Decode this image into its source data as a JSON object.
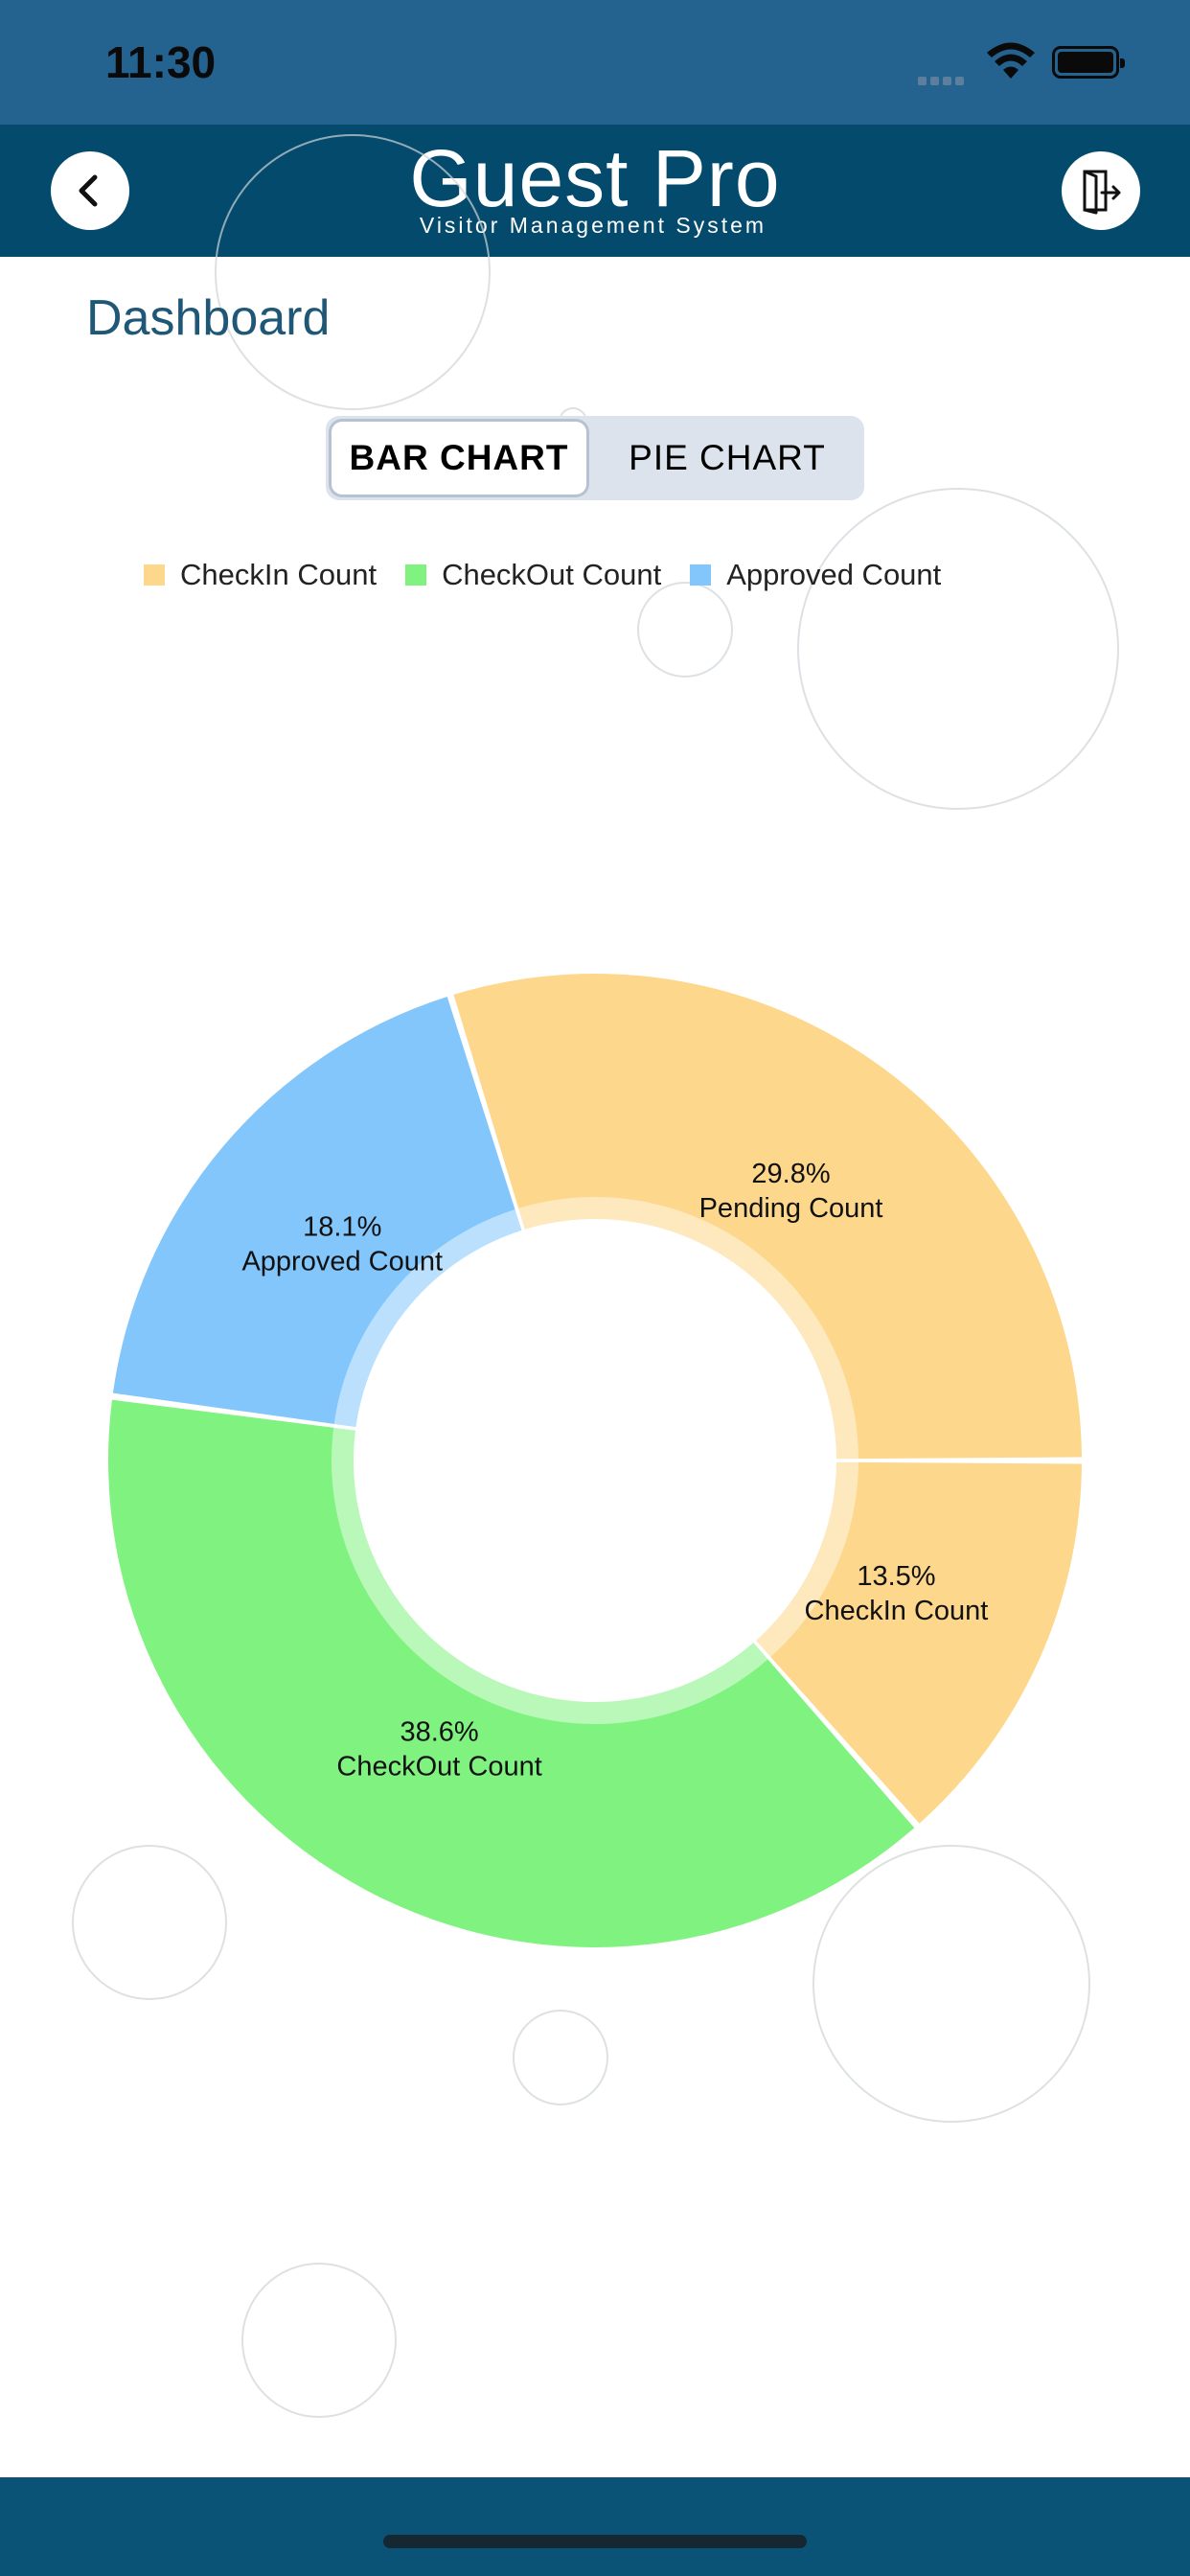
{
  "status_bar": {
    "time": "11:30"
  },
  "header": {
    "brand_title": "Guest Pro",
    "brand_subtitle": "Visitor Management System",
    "back_icon": "chevron-left-icon",
    "logout_icon": "door-exit-icon"
  },
  "page": {
    "title": "Dashboard"
  },
  "toggle": {
    "bar_label": "BAR CHART",
    "pie_label": "PIE CHART",
    "selected": "BAR CHART"
  },
  "legend": [
    {
      "label": "CheckIn Count",
      "color": "#fdd78b"
    },
    {
      "label": "CheckOut Count",
      "color": "#80f280"
    },
    {
      "label": "Approved Count",
      "color": "#82c6fb"
    }
  ],
  "chart_data": {
    "type": "pie",
    "variant": "donut",
    "slices": [
      {
        "name": "Pending Count",
        "value": 29.8,
        "label": "29.8%",
        "color": "#fdd78b"
      },
      {
        "name": "CheckIn Count",
        "value": 13.5,
        "label": "13.5%",
        "color": "#fdd78b"
      },
      {
        "name": "CheckOut Count",
        "value": 38.6,
        "label": "38.6%",
        "color": "#80f280"
      },
      {
        "name": "Approved Count",
        "value": 18.1,
        "label": "18.1%",
        "color": "#82c6fb"
      }
    ],
    "legend_placement": "top"
  }
}
